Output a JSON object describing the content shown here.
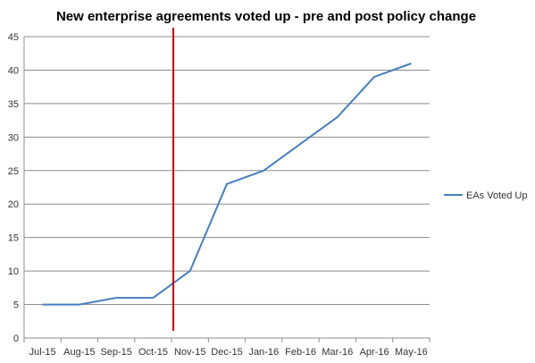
{
  "chart_data": {
    "type": "line",
    "title": "New enterprise agreements voted up - pre and post policy change",
    "xlabel": "",
    "ylabel": "",
    "categories": [
      "Jul-15",
      "Aug-15",
      "Sep-15",
      "Oct-15",
      "Nov-15",
      "Dec-15",
      "Jan-16",
      "Feb-16",
      "Mar-16",
      "Apr-16",
      "May-16"
    ],
    "series": [
      {
        "name": "EAs Voted Up",
        "values": [
          5,
          5,
          6,
          6,
          10,
          23,
          25,
          29,
          33,
          39,
          41
        ],
        "color": "#4a7ebb"
      }
    ],
    "ylim": [
      0,
      45
    ],
    "ytick_step": 5,
    "grid": true,
    "legend": "right",
    "marker_line": {
      "position_between": [
        "Oct-15",
        "Nov-15"
      ],
      "color": "#c00000"
    }
  }
}
